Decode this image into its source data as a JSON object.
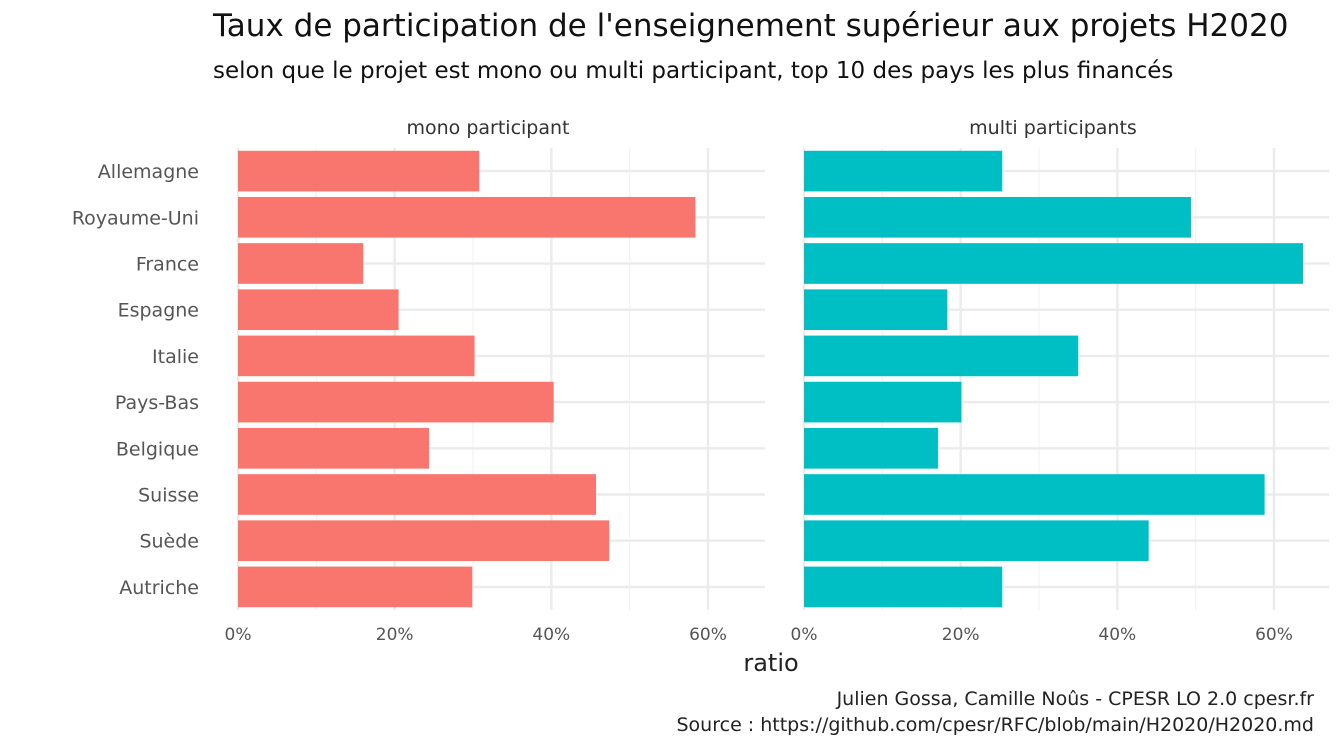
{
  "chart_data": {
    "type": "bar",
    "orientation": "horizontal",
    "title": "Taux de participation de l'enseignement supérieur aux projets H2020",
    "subtitle": "selon que le projet est mono ou multi participant, top 10 des pays les plus financés",
    "xlabel": "ratio",
    "ylabel": "",
    "xlim": [
      0,
      0.67
    ],
    "x_ticks": [
      0,
      0.2,
      0.4,
      0.6
    ],
    "x_tick_labels": [
      "0%",
      "20%",
      "40%",
      "60%"
    ],
    "grid": true,
    "legend": "none",
    "categories": [
      "Allemagne",
      "Royaume-Uni",
      "France",
      "Espagne",
      "Italie",
      "Pays-Bas",
      "Belgique",
      "Suisse",
      "Suède",
      "Autriche"
    ],
    "series": [
      {
        "name": "mono participant",
        "color": "#F8766D",
        "values": [
          0.308,
          0.584,
          0.16,
          0.205,
          0.302,
          0.403,
          0.244,
          0.457,
          0.474,
          0.299
        ]
      },
      {
        "name": "multi participants",
        "color": "#00BFC4",
        "values": [
          0.253,
          0.494,
          0.637,
          0.183,
          0.35,
          0.201,
          0.171,
          0.588,
          0.44,
          0.253
        ]
      }
    ]
  },
  "caption": {
    "line1": "Julien Gossa, Camille Noûs - CPESR LO 2.0 cpesr.fr",
    "line2": "Source : https://github.com/cpesr/RFC/blob/main/H2020/H2020.md"
  }
}
